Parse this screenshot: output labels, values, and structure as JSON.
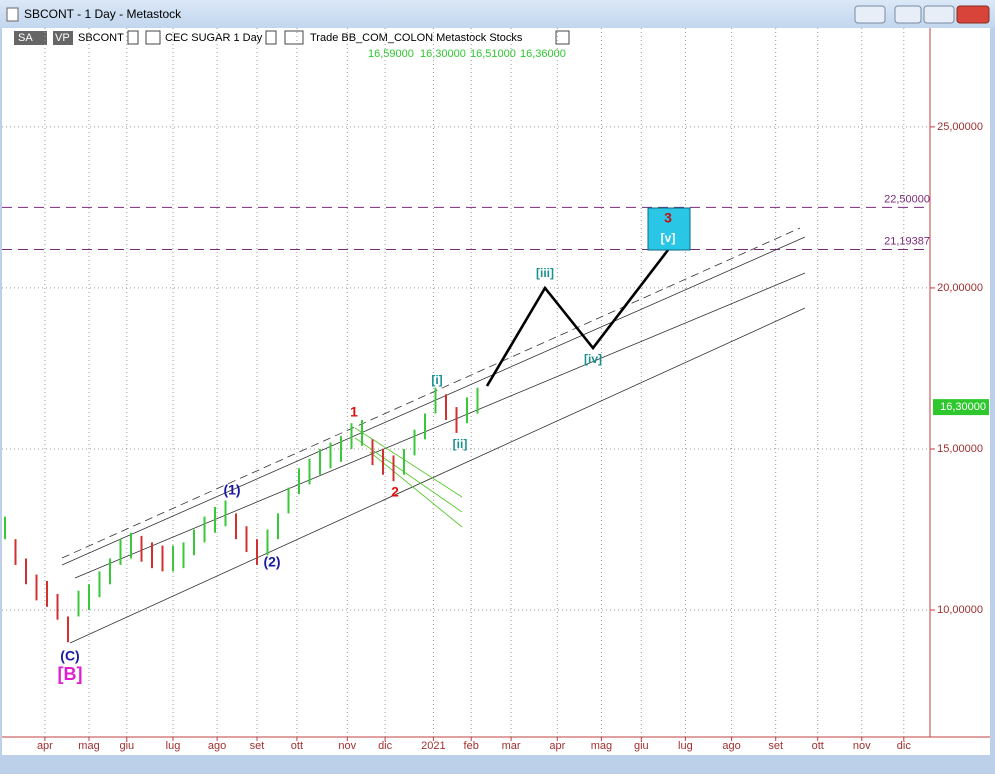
{
  "window": {
    "title": "SBCONT - 1 Day - Metastock"
  },
  "toolbar": {
    "sa": "SA",
    "vp": "VP",
    "symbol": "SBCONT",
    "security": "CEC SUGAR  1 Day",
    "source": "Trade  BB_COM_COLON  Metastock  Stocks",
    "quote": [
      "16,59000",
      "16,30000",
      "16,51000",
      "16,36000"
    ]
  },
  "chart_data": {
    "type": "ohlc",
    "ylim": [
      6.12,
      28.07
    ],
    "yticks": [
      {
        "value": 10,
        "label": "10,00000"
      },
      {
        "value": 15,
        "label": "15,00000"
      },
      {
        "value": 20,
        "label": "20,00000"
      },
      {
        "value": 25,
        "label": "25,00000"
      }
    ],
    "xlim": [
      0,
      440
    ],
    "xticks": [
      {
        "value": 19,
        "label": "apr"
      },
      {
        "value": 40,
        "label": "mag"
      },
      {
        "value": 58,
        "label": "giu"
      },
      {
        "value": 80,
        "label": "lug"
      },
      {
        "value": 101,
        "label": "ago"
      },
      {
        "value": 120,
        "label": "set"
      },
      {
        "value": 139,
        "label": "ott"
      },
      {
        "value": 163,
        "label": "nov"
      },
      {
        "value": 181,
        "label": "dic"
      },
      {
        "value": 204,
        "label": "2021"
      },
      {
        "value": 222,
        "label": "feb"
      },
      {
        "value": 241,
        "label": "mar"
      },
      {
        "value": 263,
        "label": "apr"
      },
      {
        "value": 284,
        "label": "mag"
      },
      {
        "value": 303,
        "label": "giu"
      },
      {
        "value": 324,
        "label": "lug"
      },
      {
        "value": 346,
        "label": "ago"
      },
      {
        "value": 367,
        "label": "set"
      },
      {
        "value": 387,
        "label": "ott"
      },
      {
        "value": 408,
        "label": "nov"
      },
      {
        "value": 428,
        "label": "dic"
      }
    ],
    "x": [
      0,
      5,
      10,
      15,
      20,
      25,
      30,
      35,
      40,
      45,
      50,
      55,
      60,
      65,
      70,
      75,
      80,
      85,
      90,
      95,
      100,
      105,
      110,
      115,
      120,
      125,
      130,
      135,
      140,
      145,
      150,
      155,
      160,
      165,
      170,
      175,
      180,
      185,
      190,
      195,
      200,
      205,
      210,
      215,
      220,
      225
    ],
    "high": [
      12.9,
      12.2,
      11.6,
      11.1,
      10.9,
      10.5,
      9.8,
      10.6,
      10.8,
      11.2,
      11.6,
      12.2,
      12.4,
      12.3,
      12.1,
      12.0,
      12.0,
      12.1,
      12.5,
      12.9,
      13.2,
      13.4,
      13.0,
      12.6,
      12.2,
      12.5,
      13.0,
      13.8,
      14.4,
      14.7,
      15.0,
      15.2,
      15.4,
      15.8,
      15.9,
      15.3,
      15.0,
      14.8,
      15.0,
      15.6,
      16.1,
      16.9,
      16.7,
      16.3,
      16.6,
      16.9
    ],
    "low": [
      12.2,
      11.4,
      10.8,
      10.3,
      10.1,
      9.7,
      9.0,
      9.8,
      10.0,
      10.4,
      10.8,
      11.4,
      11.6,
      11.5,
      11.3,
      11.2,
      11.2,
      11.3,
      11.7,
      12.1,
      12.4,
      12.6,
      12.2,
      11.8,
      11.4,
      11.7,
      12.2,
      13.0,
      13.6,
      13.9,
      14.2,
      14.4,
      14.6,
      15.0,
      15.1,
      14.5,
      14.2,
      14.0,
      14.2,
      14.8,
      15.3,
      16.1,
      15.9,
      15.5,
      15.8,
      16.1
    ],
    "levels": [
      {
        "value": 22.5,
        "label": "22,50000"
      },
      {
        "value": 21.19387,
        "label": "21,19387"
      }
    ],
    "last": {
      "value": 16.3,
      "label": "16,30000"
    },
    "waves": [
      {
        "text": "(C)",
        "color": "#1a1aa0"
      },
      {
        "text": "[B]",
        "color": "#e020d0"
      },
      {
        "text": "(1)",
        "color": "#1a1aa0"
      },
      {
        "text": "(2)",
        "color": "#1a1aa0"
      },
      {
        "text": "1",
        "color": "#e01010"
      },
      {
        "text": "2",
        "color": "#e01010"
      },
      {
        "text": "[i]",
        "color": "#1a9090"
      },
      {
        "text": "[ii]",
        "color": "#1a9090"
      },
      {
        "text": "[iii]",
        "color": "#1a9090"
      },
      {
        "text": "[iv]",
        "color": "#1a9090"
      },
      {
        "text": "3",
        "color": "#c01010"
      },
      {
        "text": "[v]",
        "color": "#ffffff"
      }
    ]
  }
}
